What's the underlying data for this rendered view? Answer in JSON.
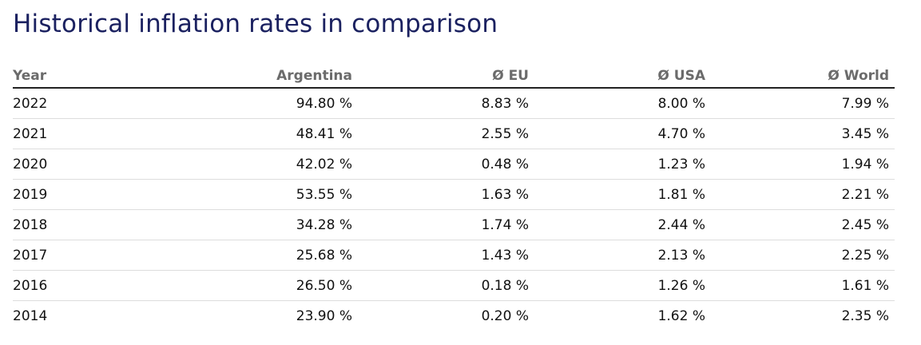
{
  "title": "Historical inflation rates in comparison",
  "table": {
    "header": [
      "Year",
      "Argentina",
      "Ø EU",
      "Ø USA",
      "Ø World"
    ],
    "rows": [
      [
        "2022",
        "94.80 %",
        "8.83 %",
        "8.00 %",
        "7.99 %"
      ],
      [
        "2021",
        "48.41 %",
        "2.55 %",
        "4.70 %",
        "3.45 %"
      ],
      [
        "2020",
        "42.02 %",
        "0.48 %",
        "1.23 %",
        "1.94 %"
      ],
      [
        "2019",
        "53.55 %",
        "1.63 %",
        "1.81 %",
        "2.21 %"
      ],
      [
        "2018",
        "34.28 %",
        "1.74 %",
        "2.44 %",
        "2.45 %"
      ],
      [
        "2017",
        "25.68 %",
        "1.43 %",
        "2.13 %",
        "2.25 %"
      ],
      [
        "2016",
        "26.50 %",
        "0.18 %",
        "1.26 %",
        "1.61 %"
      ],
      [
        "2014",
        "23.90 %",
        "0.20 %",
        "1.62 %",
        "2.35 %"
      ]
    ]
  }
}
